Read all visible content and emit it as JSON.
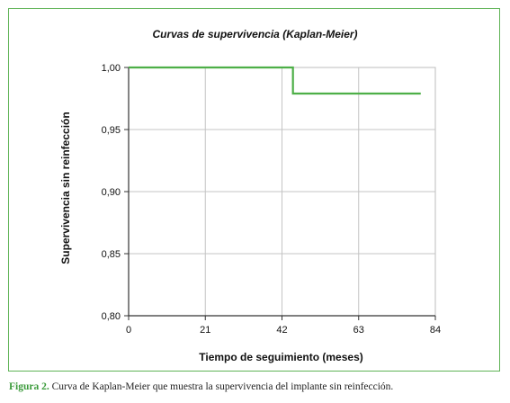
{
  "caption": {
    "figure_label": "Figura 2.",
    "text": " Curva de Kaplan-Meier que muestra la supervivencia del implante sin reinfección."
  },
  "chart_data": {
    "type": "line",
    "title": "Curvas de supervivencia (Kaplan-Meier)",
    "xlabel": "Tiempo de seguimiento (meses)",
    "ylabel": "Supervivencia sin reinfección",
    "xlim": [
      0,
      84
    ],
    "ylim": [
      0.8,
      1.0
    ],
    "x_ticks": [
      0,
      21,
      42,
      63,
      84
    ],
    "x_tick_labels": [
      "0",
      "21",
      "42",
      "63",
      "84"
    ],
    "y_ticks": [
      0.8,
      0.85,
      0.9,
      0.95,
      1.0
    ],
    "y_tick_labels": [
      "0,80",
      "0,85",
      "0,90",
      "0,95",
      "1,00"
    ],
    "grid": true,
    "line_color": "#4daf47",
    "series": [
      {
        "step": true,
        "x": [
          0,
          45,
          45,
          80
        ],
        "y": [
          1.0,
          1.0,
          0.979,
          0.979
        ]
      }
    ]
  }
}
